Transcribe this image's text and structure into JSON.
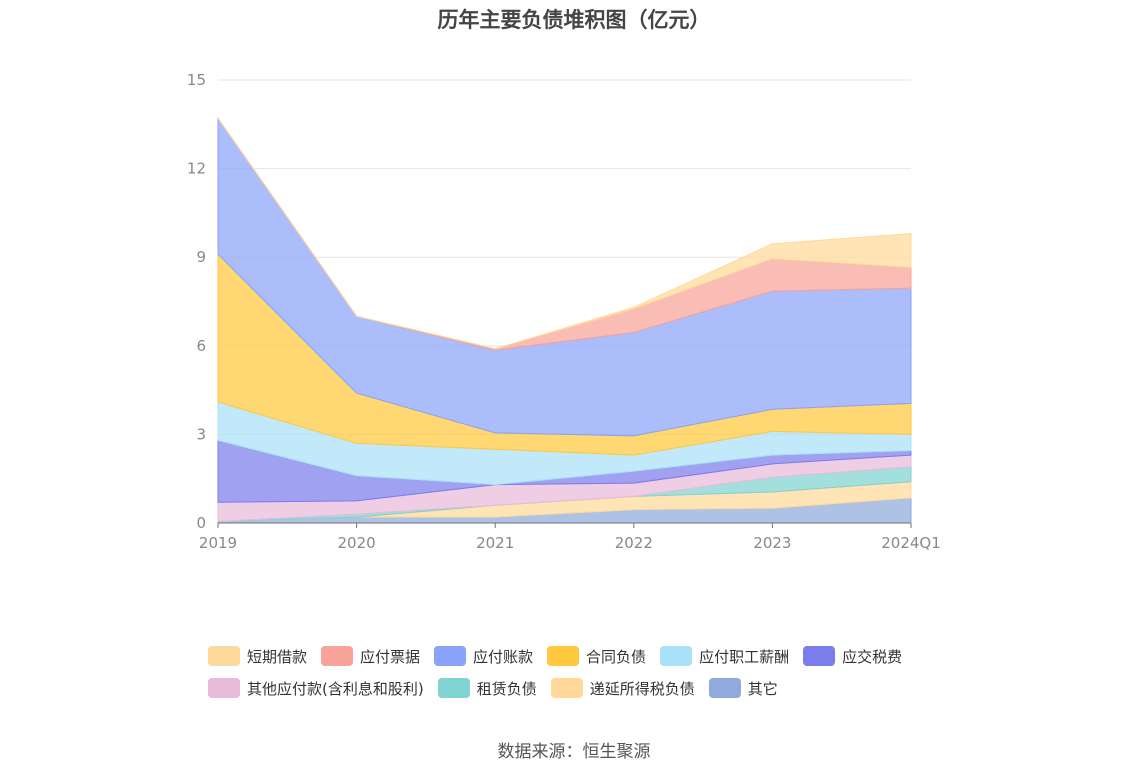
{
  "chart_data": {
    "type": "area",
    "stacked": true,
    "title": "历年主要负债堆积图（亿元）",
    "categories": [
      "2019",
      "2020",
      "2021",
      "2022",
      "2023",
      "2024Q1"
    ],
    "ylim": [
      0,
      15
    ],
    "yticks": [
      0,
      3,
      6,
      9,
      12,
      15
    ],
    "grid": true,
    "legend_position": "bottom",
    "series": [
      {
        "name": "其它",
        "color": "#8FAADC",
        "values": [
          0.05,
          0.2,
          0.2,
          0.45,
          0.5,
          0.85
        ]
      },
      {
        "name": "递延所得税负债",
        "color": "#FFD99A",
        "values": [
          0.0,
          0.0,
          0.4,
          0.45,
          0.55,
          0.55
        ]
      },
      {
        "name": "租赁负债",
        "color": "#7FD3D0",
        "values": [
          0.0,
          0.1,
          0.0,
          0.0,
          0.5,
          0.5
        ]
      },
      {
        "name": "其他应付款(含利息和股利)",
        "color": "#E8BADB",
        "values": [
          0.65,
          0.45,
          0.7,
          0.45,
          0.45,
          0.4
        ]
      },
      {
        "name": "应交税费",
        "color": "#7B7DEB",
        "values": [
          2.1,
          0.85,
          0.0,
          0.4,
          0.3,
          0.15
        ]
      },
      {
        "name": "应付职工薪酬",
        "color": "#A9E1F8",
        "values": [
          1.3,
          1.1,
          1.2,
          0.55,
          0.8,
          0.55
        ]
      },
      {
        "name": "合同负债",
        "color": "#FFC83D",
        "values": [
          5.0,
          1.7,
          0.55,
          0.65,
          0.75,
          1.05
        ]
      },
      {
        "name": "应付账款",
        "color": "#8AA3FA",
        "values": [
          4.6,
          2.6,
          2.8,
          3.5,
          4.0,
          3.9
        ]
      },
      {
        "name": "应付票据",
        "color": "#F7A39A",
        "values": [
          0.0,
          0.0,
          0.05,
          0.8,
          1.1,
          0.7
        ]
      },
      {
        "name": "短期借款",
        "color": "#FFD99A",
        "values": [
          0.0,
          0.0,
          0.0,
          0.05,
          0.5,
          1.15
        ]
      }
    ]
  },
  "legend": {
    "rows": [
      [
        {
          "label": "短期借款",
          "color": "#FFD99A"
        },
        {
          "label": "应付票据",
          "color": "#F7A39A"
        },
        {
          "label": "应付账款",
          "color": "#8AA3FA"
        },
        {
          "label": "合同负债",
          "color": "#FFC83D"
        },
        {
          "label": "应付职工薪酬",
          "color": "#A9E1F8"
        },
        {
          "label": "应交税费",
          "color": "#7B7DEB"
        }
      ],
      [
        {
          "label": "其他应付款(含利息和股利)",
          "color": "#E8BADB"
        },
        {
          "label": "租赁负债",
          "color": "#7FD3D0"
        },
        {
          "label": "递延所得税负债",
          "color": "#FFD99A"
        },
        {
          "label": "其它",
          "color": "#8FAADC"
        }
      ]
    ]
  },
  "source": "数据来源：恒生聚源"
}
